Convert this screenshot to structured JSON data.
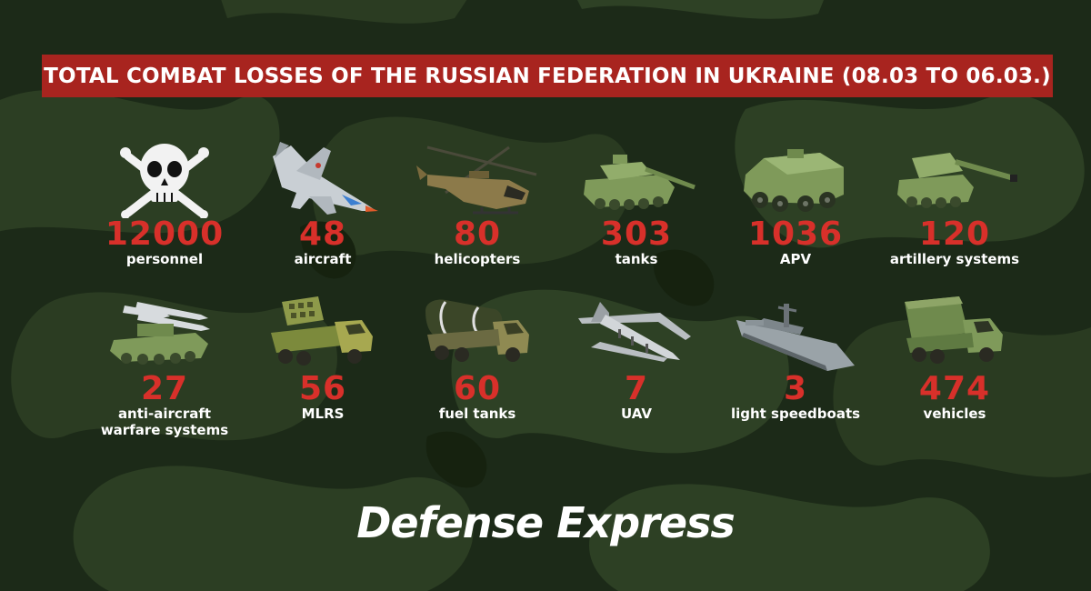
{
  "banner": {
    "title": "TOTAL COMBAT LOSSES OF THE RUSSIAN FEDERATION IN UKRAINE (08.03 TO 06.03.)"
  },
  "colors": {
    "banner_bg": "#a8241f",
    "number": "#d8302a",
    "label": "#ffffff",
    "camo_dark": "#1c2a18",
    "camo_light": "#2f4225",
    "vehicle_green": "#7f9a5a"
  },
  "stats": [
    {
      "value": "12000",
      "label": "personnel",
      "icon": "skull-crossbones-icon"
    },
    {
      "value": "48",
      "label": "aircraft",
      "icon": "fighter-jet-icon"
    },
    {
      "value": "80",
      "label": "helicopters",
      "icon": "helicopter-icon"
    },
    {
      "value": "303",
      "label": "tanks",
      "icon": "tank-icon"
    },
    {
      "value": "1036",
      "label": "APV",
      "icon": "armored-vehicle-icon"
    },
    {
      "value": "120",
      "label": "artillery systems",
      "icon": "artillery-icon"
    },
    {
      "value": "27",
      "label": "anti-aircraft\nwarfare systems",
      "icon": "missile-launcher-icon"
    },
    {
      "value": "56",
      "label": "MLRS",
      "icon": "mlrs-truck-icon"
    },
    {
      "value": "60",
      "label": "fuel tanks",
      "icon": "fuel-truck-icon"
    },
    {
      "value": "7",
      "label": "UAV",
      "icon": "drone-icon"
    },
    {
      "value": "3",
      "label": "light speedboats",
      "icon": "warship-icon"
    },
    {
      "value": "474",
      "label": "vehicles",
      "icon": "military-truck-icon"
    }
  ],
  "brand": {
    "name": "Defense Express"
  }
}
